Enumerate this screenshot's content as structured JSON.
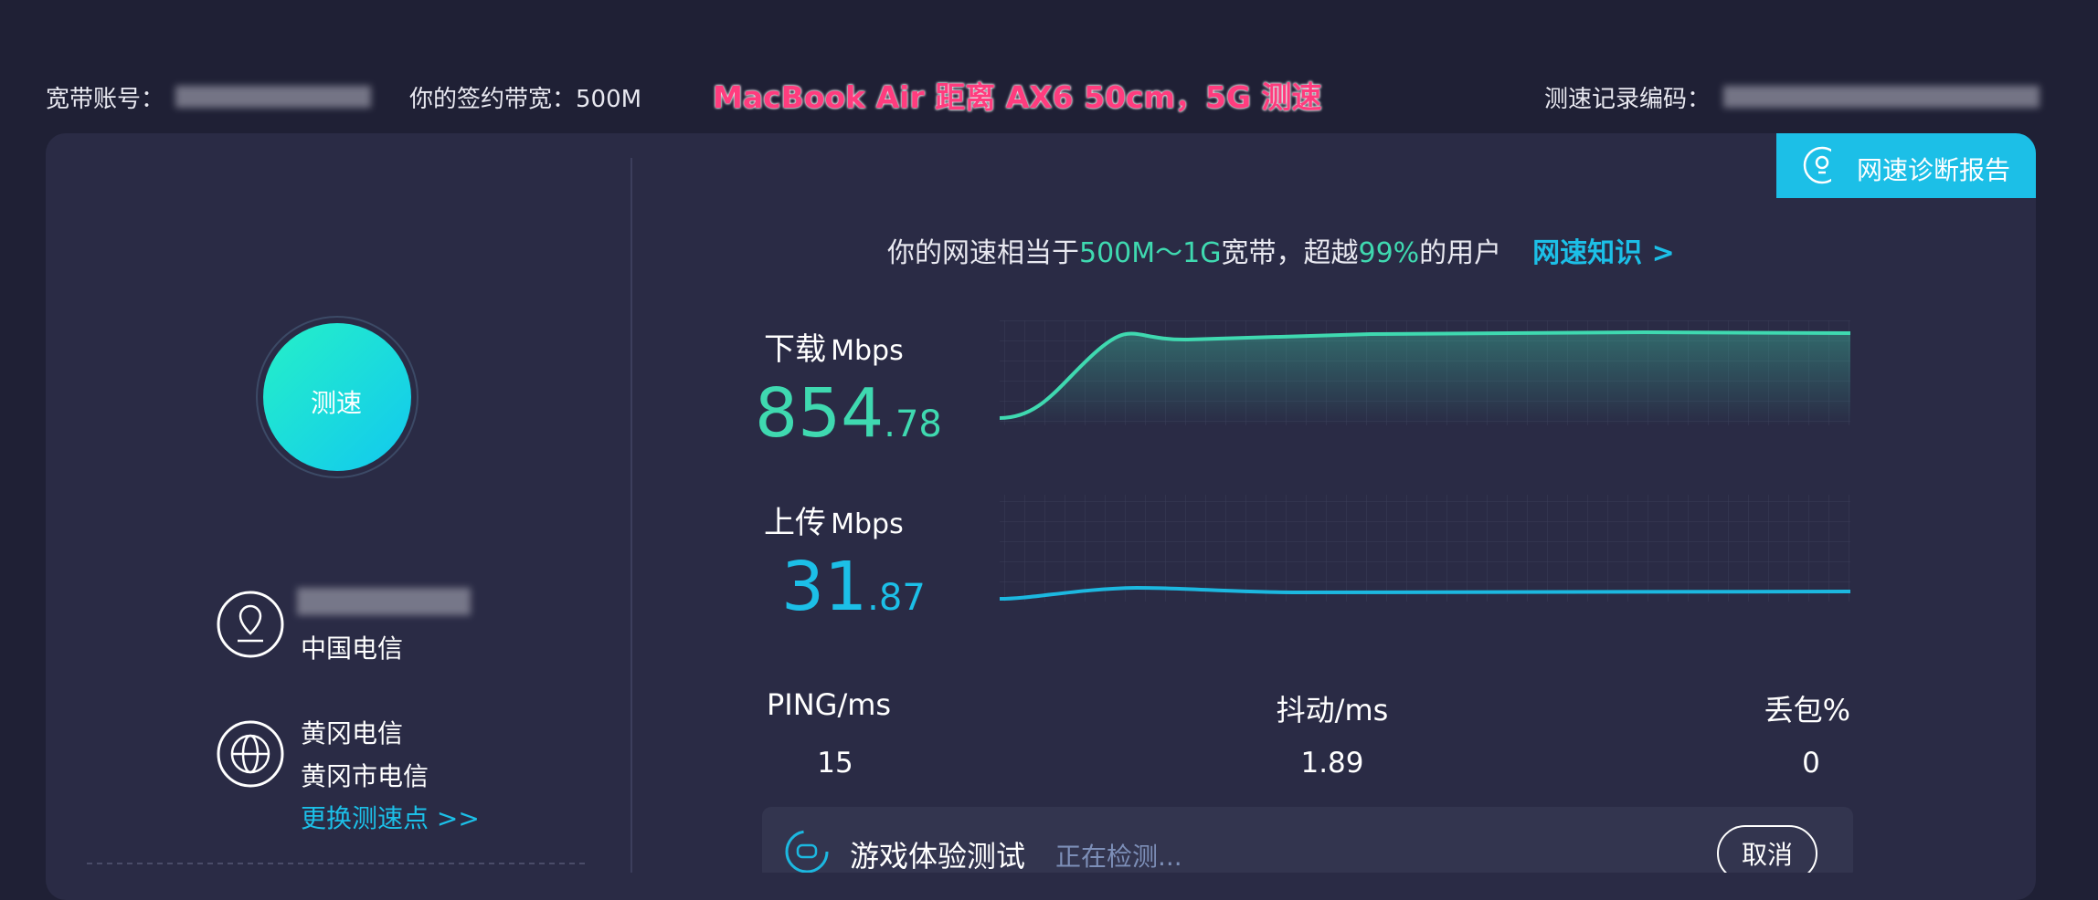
{
  "header": {
    "account_label": "宽带账号：",
    "bandwidth": "你的签约带宽：500M",
    "annotation": "MacBook Air 距离 AX6 50cm，5G 测速",
    "record_label": "测速记录编码："
  },
  "report_button": "网速诊断报告",
  "left": {
    "test_button": "测速",
    "isp": "中国电信",
    "server": "黄冈电信",
    "server_isp": "黄冈市电信",
    "change_server": "更换测速点 >>"
  },
  "summary": [
    "你的网速相当于",
    "500M～1G",
    "宽带，超越",
    "99%",
    "的用户",
    "网速知识 >"
  ],
  "download": {
    "label": "下载",
    "unit": "Mbps",
    "integer": "854",
    "decimal": ".78"
  },
  "upload": {
    "label": "上传",
    "unit": "Mbps",
    "integer": "31",
    "decimal": ".87"
  },
  "metrics": [
    {
      "label": "PING/ms",
      "value": "15"
    },
    {
      "label": "抖动/ms",
      "value": "1.89"
    },
    {
      "label": "丢包%",
      "value": "0"
    }
  ],
  "game_test": {
    "title": "游戏体验测试",
    "status": "正在检测...",
    "cancel": "取消"
  }
}
